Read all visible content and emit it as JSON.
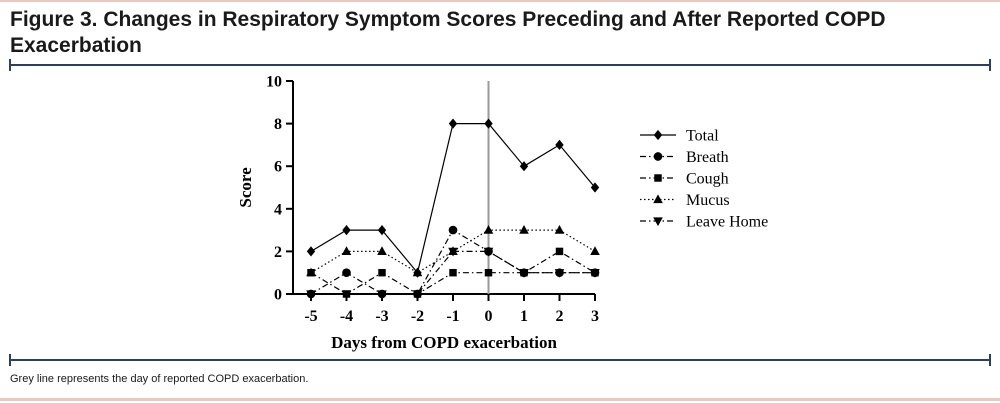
{
  "figure": {
    "title": "Figure 3. Changes in Respiratory Symptom Scores Preceding and After Reported COPD Exacerbation",
    "footnote": "Grey line represents the day of reported COPD exacerbation."
  },
  "chart_data": {
    "type": "line",
    "title": "Figure 3. Changes in Respiratory Symptom Scores Preceding and After Reported COPD Exacerbation",
    "xlabel": "Days from COPD exacerbation",
    "ylabel": "Score",
    "x": [
      -5,
      -4,
      -3,
      -2,
      -1,
      0,
      1,
      2,
      3
    ],
    "xlim": [
      -5,
      3
    ],
    "ylim": [
      0,
      10
    ],
    "yticks": [
      0,
      2,
      4,
      6,
      8,
      10
    ],
    "grid": false,
    "legend": "right",
    "reference_line": {
      "x": 0,
      "color": "#9a9a9a"
    },
    "series": [
      {
        "name": "Total",
        "marker": "diamond",
        "dash": "solid",
        "values": [
          2,
          3,
          3,
          1,
          8,
          8,
          6,
          7,
          5
        ]
      },
      {
        "name": "Breath",
        "marker": "circle",
        "dash": "dashdot",
        "values": [
          0,
          1,
          0,
          0,
          3,
          2,
          1,
          1,
          1
        ]
      },
      {
        "name": "Cough",
        "marker": "square",
        "dash": "dashdot",
        "values": [
          1,
          0,
          1,
          0,
          1,
          1,
          1,
          2,
          1
        ]
      },
      {
        "name": "Mucus",
        "marker": "triangle-up",
        "dash": "dotted",
        "values": [
          1,
          2,
          2,
          1,
          2,
          3,
          3,
          3,
          2
        ]
      },
      {
        "name": "Leave Home",
        "marker": "triangle-down",
        "dash": "dashdot",
        "values": [
          0,
          0,
          0,
          0,
          2,
          2,
          1,
          1,
          1
        ]
      }
    ]
  }
}
